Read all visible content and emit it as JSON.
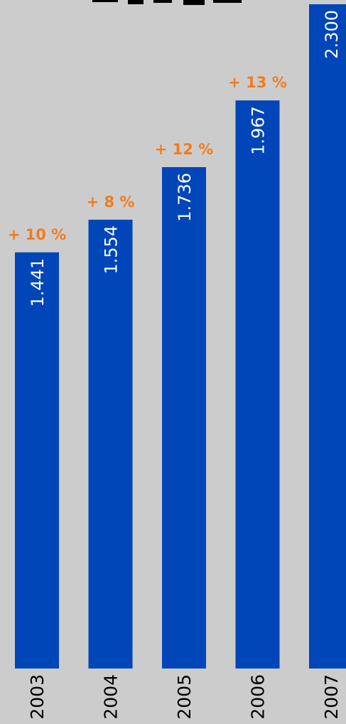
{
  "chart_data": {
    "type": "bar",
    "title": "",
    "xlabel": "",
    "ylabel": "",
    "categories": [
      "2003",
      "2004",
      "2005",
      "2006",
      "2007"
    ],
    "values": [
      1441,
      1554,
      1736,
      1967,
      2300
    ],
    "value_labels": [
      "1.441",
      "1.554",
      "1.736",
      "1.967",
      "2.300"
    ],
    "growth_labels": [
      "+ 10 %",
      "+ 8 %",
      "+ 12 %",
      "+ 13 %",
      ""
    ],
    "ylim": [
      0,
      2300
    ],
    "grid": false,
    "legend": "none",
    "colors": {
      "bar": "#0046b8",
      "growth": "#f07c20",
      "background": "#cccccc"
    }
  }
}
